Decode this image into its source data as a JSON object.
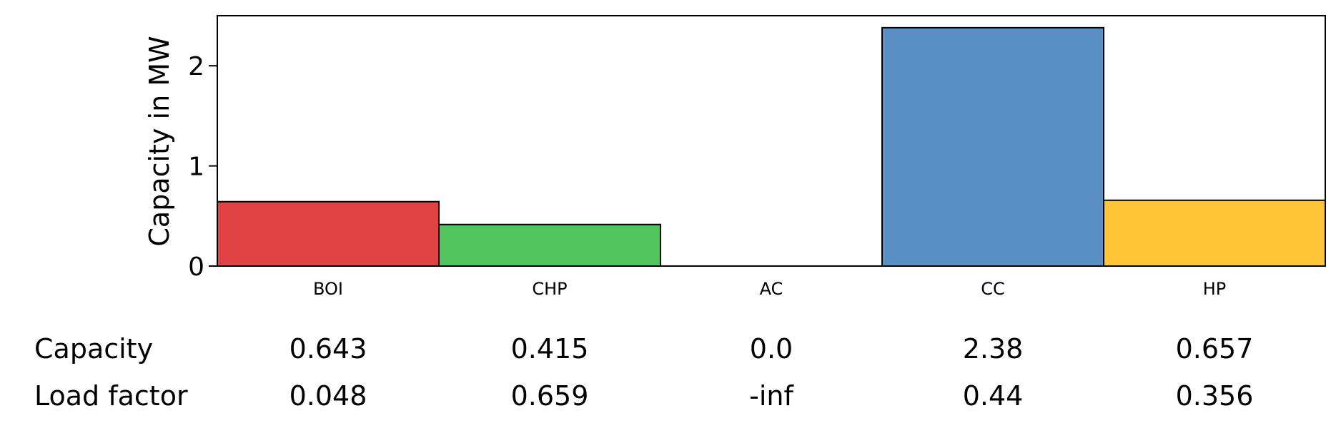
{
  "chart_data": {
    "type": "bar",
    "ylabel": "Capacity in MW",
    "ylim": [
      0,
      2.5
    ],
    "yticks": [
      0,
      1,
      2
    ],
    "grid": false,
    "categories": [
      "BOI",
      "CHP",
      "AC",
      "CC",
      "HP"
    ],
    "values": [
      0.643,
      0.415,
      0.0,
      2.38,
      0.657
    ],
    "colors": [
      "#e04343",
      "#52c45f",
      "#4f8ec8",
      "#5b90c4",
      "#fec536"
    ],
    "table": {
      "rows": [
        {
          "label": "Capacity",
          "values": [
            "0.643",
            "0.415",
            "0.0",
            "2.38",
            "0.657"
          ]
        },
        {
          "label": "Load factor",
          "values": [
            "0.048",
            "0.659",
            "-inf",
            "0.44",
            "0.356"
          ]
        }
      ]
    }
  }
}
